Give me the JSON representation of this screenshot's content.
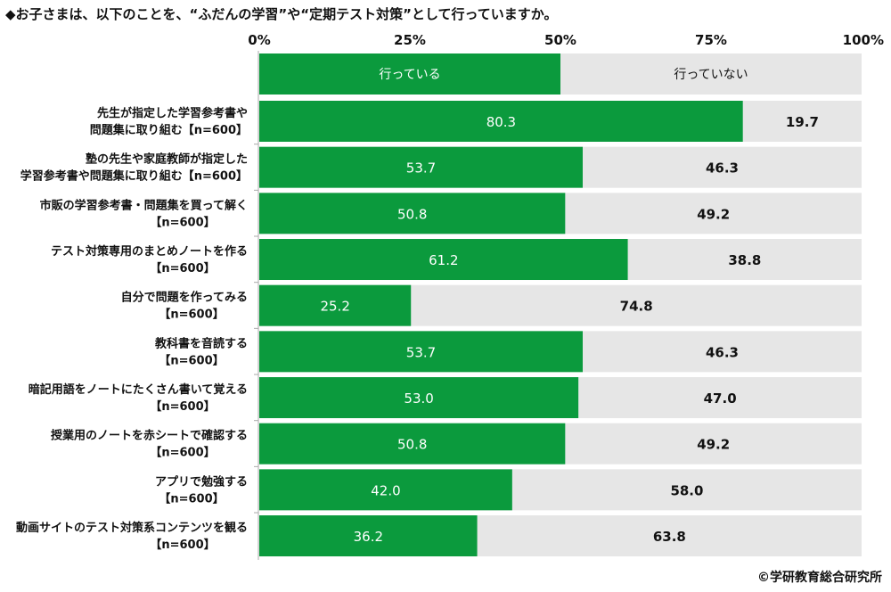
{
  "chart_data": {
    "type": "bar",
    "stacked": true,
    "orientation": "horizontal",
    "title": "◆お子さまは、以下のことを、“ふだんの学習”や“定期テスト対策”として行っていますか。",
    "xlim": [
      0,
      100
    ],
    "x_ticks": [
      "0%",
      "25%",
      "50%",
      "75%",
      "100%"
    ],
    "legend": [
      "行っている",
      "行っていない"
    ],
    "legend_placement": "top (inline as first bar)",
    "colors": {
      "done": "#0b9a3d",
      "not_done": "#e6e6e6"
    },
    "categories": [
      [
        "先生が指定した学習参考書や",
        "問題集に取り組む【n=600】"
      ],
      [
        "塾の先生や家庭教師が指定した",
        "学習参考書や問題集に取り組む【n=600】"
      ],
      [
        "市販の学習参考書・問題集を買って解く",
        "【n=600】"
      ],
      [
        "テスト対策専用のまとめノートを作る",
        "【n=600】"
      ],
      [
        "自分で問題を作ってみる",
        "【n=600】"
      ],
      [
        "教科書を音読する",
        "【n=600】"
      ],
      [
        "暗記用語をノートにたくさん書いて覚える",
        "【n=600】"
      ],
      [
        "授業用のノートを赤シートで確認する",
        "【n=600】"
      ],
      [
        "アプリで勉強する",
        "【n=600】"
      ],
      [
        "動画サイトのテスト対策系コンテンツを観る",
        "【n=600】"
      ]
    ],
    "series": [
      {
        "name": "行っている",
        "values": [
          80.3,
          53.7,
          50.8,
          61.2,
          25.2,
          53.7,
          53.0,
          50.8,
          42.0,
          36.2
        ]
      },
      {
        "name": "行っていない",
        "values": [
          19.7,
          46.3,
          49.2,
          38.8,
          74.8,
          46.3,
          47.0,
          49.2,
          58.0,
          63.8
        ]
      }
    ]
  },
  "copyright": "©学研教育総合研究所"
}
